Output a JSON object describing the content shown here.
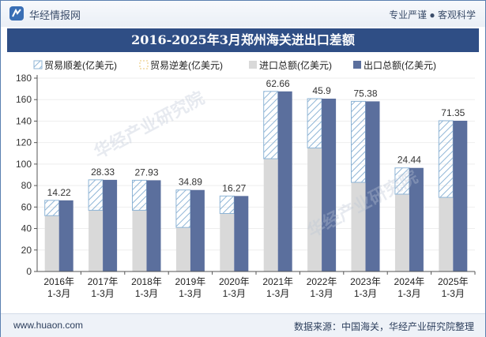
{
  "header": {
    "brand": "华经情报网",
    "tagline": "专业严谨 ● 客观科学"
  },
  "footer": {
    "site": "www.huaon.com",
    "source": "数据来源：中国海关，华经产业研究院整理"
  },
  "watermark": {
    "text": "华经产业研究院"
  },
  "colors": {
    "import": "#d9d9d9",
    "export": "#5b6f9d",
    "surplus_stroke": "#8fb5d6",
    "deficit": "#f0d9a0",
    "title_bg": "#2f4e85"
  },
  "chart_data": {
    "type": "bar",
    "title": "2016-2025年3月郑州海关进出口差额",
    "categories": [
      "2016年\n1-3月",
      "2017年\n1-3月",
      "2018年\n1-3月",
      "2019年\n1-3月",
      "2020年\n1-3月",
      "2021年\n1-3月",
      "2022年\n1-3月",
      "2023年\n1-3月",
      "2024年\n1-3月",
      "2025年\n1-3月"
    ],
    "legend": [
      "贸易顺差(亿美元)",
      "贸易逆差(亿美元)",
      "进口总额(亿美元)",
      "出口总额(亿美元)"
    ],
    "series": [
      {
        "name": "进口总额(亿美元)",
        "values": [
          52,
          57,
          57,
          41,
          54,
          105,
          115,
          83,
          72,
          69
        ]
      },
      {
        "name": "出口总额(亿美元)",
        "values": [
          66.22,
          85.33,
          84.93,
          75.89,
          70.27,
          167.66,
          160.9,
          158.38,
          96.44,
          140.35
        ]
      },
      {
        "name": "贸易顺差(亿美元)",
        "values": [
          14.22,
          28.33,
          27.93,
          34.89,
          16.27,
          62.66,
          45.9,
          75.38,
          24.44,
          71.35
        ]
      }
    ],
    "ylim": [
      0,
      180
    ],
    "yticks": [
      0,
      20,
      40,
      60,
      80,
      100,
      120,
      140,
      160,
      180
    ]
  }
}
